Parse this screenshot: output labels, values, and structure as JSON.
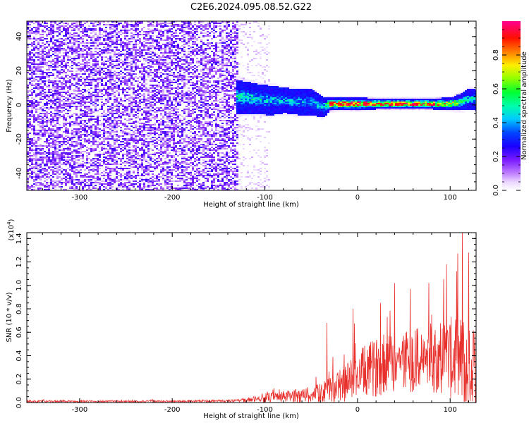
{
  "title": "C2E6.2024.095.08.52.G22",
  "chart_data": [
    {
      "type": "heatmap",
      "xlabel": "Height of straight line (km)",
      "ylabel": "Frequency (Hz)",
      "xlim": [
        -357,
        128
      ],
      "ylim": [
        -50,
        49
      ],
      "xticks": [
        -300,
        -200,
        -100,
        0,
        100
      ],
      "yticks": [
        -40,
        -20,
        0,
        20,
        40
      ],
      "x_tick_labels": [
        "-300",
        "-200",
        "-100",
        "0",
        "100"
      ],
      "y_tick_labels": [
        "-40",
        "-20",
        "0",
        "20",
        "40"
      ],
      "colorbar": {
        "label": "Normalized spectral amplitude",
        "range": [
          0,
          1
        ],
        "ticks": [
          0.0,
          0.2,
          0.4,
          0.6,
          0.8
        ],
        "tick_labels": [
          "0.0",
          "0.2",
          "0.4",
          "0.6",
          "0.8"
        ],
        "colors": [
          "#ffffff",
          "#d8b0ff",
          "#7a1aff",
          "#0000ff",
          "#00ddff",
          "#00ff66",
          "#aaff00",
          "#ffee00",
          "#ff6600",
          "#ff0000",
          "#ff00aa"
        ]
      },
      "regions": [
        {
          "name": "noise",
          "x_range": [
            -357,
            -130
          ],
          "freq_range": [
            -50,
            49
          ],
          "amplitude": "0.05-0.25"
        },
        {
          "name": "fading-noise",
          "x_range": [
            -130,
            -95
          ],
          "freq_range": [
            -50,
            49
          ],
          "amplitude": "0.02-0.08"
        },
        {
          "name": "signal-band",
          "x_range": [
            -130,
            128
          ],
          "center_freq": 1,
          "amplitude": "0.3-0.95"
        }
      ],
      "ridge": {
        "x": [
          -130,
          -110,
          -95,
          -80,
          -65,
          -50,
          -38,
          -30,
          -15,
          0,
          20,
          40,
          60,
          80,
          100,
          110,
          120,
          128
        ],
        "center": [
          5,
          4,
          3,
          3,
          2,
          2,
          -1,
          1,
          1,
          1,
          1,
          1,
          1,
          1,
          1,
          2,
          4,
          3
        ],
        "half_width": [
          8,
          7,
          7,
          6,
          6,
          6,
          5,
          3,
          3,
          3,
          2.5,
          2.5,
          2.5,
          2.5,
          3,
          4,
          5,
          5
        ],
        "peak": [
          0.5,
          0.5,
          0.45,
          0.45,
          0.45,
          0.45,
          0.45,
          0.9,
          0.9,
          0.9,
          0.9,
          0.9,
          0.9,
          0.9,
          0.8,
          0.6,
          0.5,
          0.5
        ]
      }
    },
    {
      "type": "line",
      "color": "#e8302c",
      "xlabel": "Height of straight line (km)",
      "ylabel": "SNR (10 * v/v)",
      "y_multiplier": "(x10",
      "y_multiplier_exp": "4",
      "y_multiplier_close": ")",
      "xlim": [
        -357,
        128
      ],
      "ylim": [
        0,
        14500
      ],
      "xticks": [
        -300,
        -200,
        -100,
        0,
        100
      ],
      "yticks": [
        0,
        2000,
        4000,
        6000,
        8000,
        10000,
        12000,
        14000
      ],
      "x_tick_labels": [
        "-300",
        "-200",
        "-100",
        "0",
        "100"
      ],
      "y_tick_labels": [
        "0.0",
        "0.2",
        "0.4",
        "0.6",
        "0.8",
        "1.0",
        "1.2",
        "1.4"
      ],
      "envelope": {
        "x": [
          -357,
          -300,
          -200,
          -130,
          -120,
          -100,
          -80,
          -60,
          -40,
          -30,
          -20,
          -10,
          0,
          10,
          20,
          30,
          40,
          50,
          60,
          70,
          80,
          90,
          100,
          110,
          115,
          120,
          128
        ],
        "base": [
          100,
          100,
          100,
          150,
          200,
          400,
          500,
          600,
          800,
          1000,
          1400,
          1800,
          2300,
          2700,
          3000,
          3300,
          3500,
          3600,
          3600,
          3700,
          3800,
          3900,
          3800,
          3500,
          3300,
          3000,
          2800
        ],
        "amp": [
          150,
          150,
          150,
          200,
          300,
          700,
          900,
          1100,
          1500,
          2000,
          2600,
          3200,
          3800,
          4200,
          4500,
          4700,
          4900,
          5000,
          5000,
          5200,
          5400,
          5800,
          6400,
          7000,
          7800,
          7500,
          7000
        ]
      },
      "peaks": [
        {
          "x": 113,
          "y": 14500
        },
        {
          "x": 120,
          "y": 12800
        },
        {
          "x": 96,
          "y": 11800
        },
        {
          "x": 107,
          "y": 11200
        },
        {
          "x": 40,
          "y": 10200
        },
        {
          "x": 77,
          "y": 10200
        },
        {
          "x": 57,
          "y": 9700
        },
        {
          "x": -33,
          "y": 6800
        },
        {
          "x": 25,
          "y": 8500
        },
        {
          "x": -5,
          "y": 8000
        }
      ]
    }
  ]
}
